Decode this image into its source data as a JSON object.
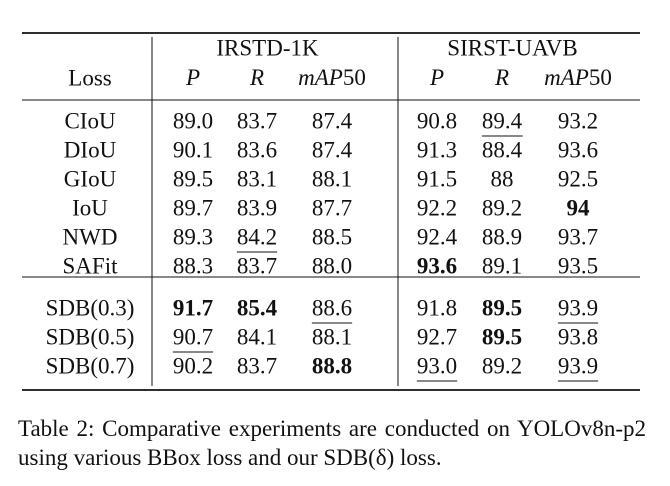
{
  "table": {
    "groups": [
      "IRSTD-1K",
      "SIRST-UAVB"
    ],
    "header": [
      "Loss",
      "P",
      "R",
      "mAP50",
      "P",
      "R",
      "mAP50"
    ],
    "row_groups": [
      [
        [
          "CIoU",
          "89.0",
          "83.7",
          "87.4",
          "90.8",
          "89.4",
          "93.2"
        ],
        [
          "DIoU",
          "90.1",
          "83.6",
          "87.4",
          "91.3",
          "88.4",
          "93.6"
        ],
        [
          "GIoU",
          "89.5",
          "83.1",
          "88.1",
          "91.5",
          "88",
          "92.5"
        ],
        [
          "IoU",
          "89.7",
          "83.9",
          "87.7",
          "92.2",
          "89.2",
          "94"
        ],
        [
          "NWD",
          "89.3",
          "84.2",
          "88.5",
          "92.4",
          "88.9",
          "93.7"
        ],
        [
          "SAFit",
          "88.3",
          "83.7",
          "88.0",
          "93.6",
          "89.1",
          "93.5"
        ]
      ],
      [
        [
          "SDB(0.3)",
          "91.7",
          "85.4",
          "88.6",
          "91.8",
          "89.5",
          "93.9"
        ],
        [
          "SDB(0.5)",
          "90.7",
          "84.1",
          "88.1",
          "92.7",
          "89.5",
          "93.8"
        ],
        [
          "SDB(0.7)",
          "90.2",
          "83.7",
          "88.8",
          "93.0",
          "89.2",
          "93.9"
        ]
      ]
    ],
    "bold": [
      [
        0,
        3,
        6
      ],
      [
        0,
        5,
        4
      ],
      [
        1,
        0,
        1
      ],
      [
        1,
        0,
        2
      ],
      [
        1,
        0,
        5
      ],
      [
        1,
        1,
        5
      ],
      [
        1,
        2,
        3
      ]
    ],
    "underline": [
      [
        0,
        0,
        5
      ],
      [
        0,
        4,
        2
      ],
      [
        1,
        0,
        3
      ],
      [
        1,
        0,
        6
      ],
      [
        1,
        1,
        1
      ],
      [
        1,
        2,
        4
      ],
      [
        1,
        2,
        6
      ]
    ]
  },
  "caption": "Table 2: Comparative experiments are conducted on YOLOv8n-p2 using various BBox loss and our SDB(δ) loss."
}
